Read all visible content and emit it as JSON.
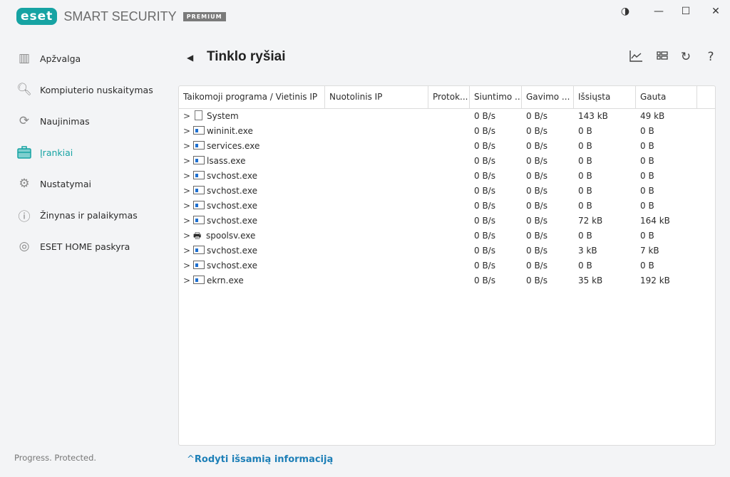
{
  "app": {
    "logo": "eset",
    "product": "SMART SECURITY",
    "edition": "PREMIUM",
    "tagline": "Progress. Protected."
  },
  "window": {
    "theme_icon": "contrast-icon",
    "minimize_icon": "minimize-icon",
    "maximize_icon": "maximize-icon",
    "close_icon": "close-icon"
  },
  "sidebar": {
    "items": [
      {
        "label": "Apžvalga",
        "icon": "overview-icon"
      },
      {
        "label": "Kompiuterio nuskaitymas",
        "icon": "search-icon"
      },
      {
        "label": "Naujinimas",
        "icon": "refresh-icon"
      },
      {
        "label": "Įrankiai",
        "icon": "toolbox-icon",
        "active": true
      },
      {
        "label": "Nustatymai",
        "icon": "gear-icon"
      },
      {
        "label": "Žinynas ir palaikymas",
        "icon": "help-icon"
      },
      {
        "label": "ESET HOME paskyra",
        "icon": "account-icon"
      }
    ]
  },
  "page": {
    "title": "Tinklo ryšiai",
    "back_icon": "back-arrow-icon",
    "toolbar": [
      "chart-icon",
      "view-list-icon",
      "refresh-icon",
      "help-icon"
    ]
  },
  "table": {
    "columns": [
      "Taikomoji programa / Vietinis IP",
      "Nuotolinis IP",
      "Protok...",
      "Siuntimo ...",
      "Gavimo ...",
      "Išsiųsta",
      "Gauta"
    ],
    "rows": [
      {
        "app": "System",
        "icon": "file",
        "send": "0 B/s",
        "recv": "0 B/s",
        "sent": "143 kB",
        "got": "49 kB"
      },
      {
        "app": "wininit.exe",
        "icon": "app",
        "send": "0 B/s",
        "recv": "0 B/s",
        "sent": "0 B",
        "got": "0 B"
      },
      {
        "app": "services.exe",
        "icon": "app",
        "send": "0 B/s",
        "recv": "0 B/s",
        "sent": "0 B",
        "got": "0 B"
      },
      {
        "app": "lsass.exe",
        "icon": "app",
        "send": "0 B/s",
        "recv": "0 B/s",
        "sent": "0 B",
        "got": "0 B"
      },
      {
        "app": "svchost.exe",
        "icon": "app",
        "send": "0 B/s",
        "recv": "0 B/s",
        "sent": "0 B",
        "got": "0 B"
      },
      {
        "app": "svchost.exe",
        "icon": "app",
        "send": "0 B/s",
        "recv": "0 B/s",
        "sent": "0 B",
        "got": "0 B"
      },
      {
        "app": "svchost.exe",
        "icon": "app",
        "send": "0 B/s",
        "recv": "0 B/s",
        "sent": "0 B",
        "got": "0 B"
      },
      {
        "app": "svchost.exe",
        "icon": "app",
        "send": "0 B/s",
        "recv": "0 B/s",
        "sent": "72 kB",
        "got": "164 kB"
      },
      {
        "app": "spoolsv.exe",
        "icon": "printer",
        "send": "0 B/s",
        "recv": "0 B/s",
        "sent": "0 B",
        "got": "0 B"
      },
      {
        "app": "svchost.exe",
        "icon": "app",
        "send": "0 B/s",
        "recv": "0 B/s",
        "sent": "3 kB",
        "got": "7 kB"
      },
      {
        "app": "svchost.exe",
        "icon": "app",
        "send": "0 B/s",
        "recv": "0 B/s",
        "sent": "0 B",
        "got": "0 B"
      },
      {
        "app": "ekrn.exe",
        "icon": "app",
        "send": "0 B/s",
        "recv": "0 B/s",
        "sent": "35 kB",
        "got": "192 kB"
      }
    ]
  },
  "details_link": "Rodyti išsamią informaciją"
}
